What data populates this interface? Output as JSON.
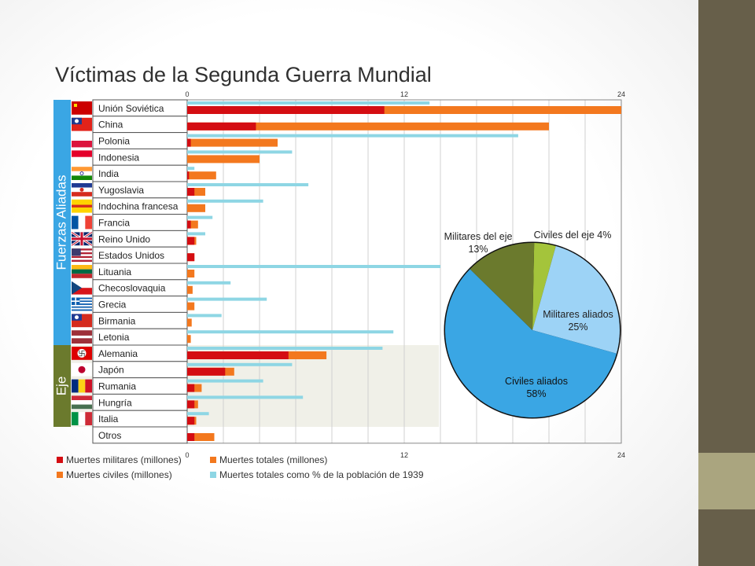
{
  "title": "Víctimas de la Segunda Guerra Mundial",
  "chart_data": [
    {
      "type": "bar",
      "title": "Víctimas de la Segunda Guerra Mundial",
      "orientation": "horizontal",
      "x_ticks": [
        "0",
        "12",
        "24"
      ],
      "xlim": [
        0,
        24
      ],
      "grid": true,
      "groups": [
        {
          "label": "Fuerzas Aliadas",
          "color": "#3aa6e4",
          "rows": [
            0,
            14
          ]
        },
        {
          "label": "Eje",
          "color": "#6b7a2d",
          "rows": [
            15,
            19
          ]
        }
      ],
      "categories": [
        "Unión Soviética",
        "China",
        "Polonia",
        "Indonesia",
        "India",
        "Yugoslavia",
        "Indochina francesa",
        "Francia",
        "Reino Unido",
        "Estados Unidos",
        "Lituania",
        "Checoslovaquia",
        "Grecia",
        "Birmania",
        "Letonia",
        "Alemania",
        "Japón",
        "Rumania",
        "Hungría",
        "Italia",
        "Otros"
      ],
      "flags": [
        "ussr",
        "china",
        "poland",
        "indonesia",
        "india",
        "yugoslavia",
        "vietnam",
        "france",
        "uk",
        "usa",
        "lithuania",
        "czechoslovakia",
        "greece",
        "burma",
        "latvia",
        "germany",
        "japan",
        "romania",
        "hungary",
        "italy",
        ""
      ],
      "series": [
        {
          "name": "Muertes militares (millones)",
          "color": "#d40d12",
          "values": [
            10.9,
            3.8,
            0.2,
            0,
            0.1,
            0.4,
            0,
            0.2,
            0.4,
            0.4,
            0,
            0,
            0,
            0,
            0,
            5.6,
            2.1,
            0.4,
            0.4,
            0.4,
            0.4
          ]
        },
        {
          "name": "Muertes totales (millones)",
          "color": "#f3781e",
          "values": [
            24,
            20,
            5.0,
            4.0,
            1.6,
            1.0,
            1.0,
            0.6,
            0.5,
            0.4,
            0.4,
            0.3,
            0.4,
            0.25,
            0.2,
            7.7,
            2.6,
            0.8,
            0.6,
            0.5,
            1.5
          ]
        },
        {
          "name": "Muertes totales como % de la población de 1939",
          "color": "#8ed6e4",
          "values": [
            13.4,
            0,
            18.3,
            5.8,
            0.4,
            6.7,
            4.2,
            1.4,
            1.0,
            0,
            14,
            2.4,
            4.4,
            1.9,
            11.4,
            10.8,
            5.8,
            4.2,
            6.4,
            1.2,
            0
          ]
        }
      ],
      "legend": [
        {
          "label": "Muertes militares (millones)",
          "color": "#d40d12"
        },
        {
          "label": "Muertes totales (millones)",
          "color": "#f3781e"
        },
        {
          "label": "Muertes civiles (millones)",
          "color": "#f3781e"
        },
        {
          "label": "Muertes totales como % de la población de 1939",
          "color": "#8ed6e4"
        }
      ],
      "legend_position": "bottom"
    },
    {
      "type": "pie",
      "slices": [
        {
          "label": "Civiles del eje 4%",
          "value": 4,
          "color": "#a4c43b"
        },
        {
          "label": "Militares aliados 25%",
          "value": 25,
          "color": "#9dd3f6"
        },
        {
          "label": "Civiles aliados 58%",
          "value": 58,
          "color": "#3aa6e4"
        },
        {
          "label": "Militares del eje 13%",
          "value": 13,
          "color": "#6b7a2d"
        }
      ]
    }
  ]
}
